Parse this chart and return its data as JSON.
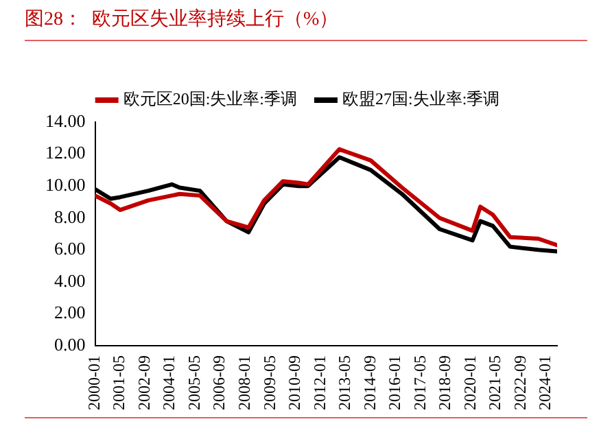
{
  "chart_data": {
    "type": "line",
    "title": "图28：  欧元区失业率持续上行（%）",
    "x": [
      "2000-01",
      "2000-11",
      "2001-05",
      "2002-11",
      "2004-02",
      "2004-07",
      "2005-08",
      "2007-01",
      "2008-03",
      "2009-01",
      "2010-01",
      "2010-11",
      "2011-05",
      "2013-01",
      "2014-09",
      "2016-05",
      "2018-05",
      "2020-02",
      "2020-07",
      "2021-03",
      "2022-02",
      "2023-08",
      "2024-08"
    ],
    "series": [
      {
        "name": "欧元区20国:失业率:季调",
        "color": "#c00000",
        "values": [
          9.4,
          8.9,
          8.5,
          9.1,
          9.4,
          9.5,
          9.4,
          7.8,
          7.4,
          9.1,
          10.3,
          10.2,
          10.1,
          12.3,
          11.6,
          9.9,
          8.0,
          7.2,
          8.7,
          8.2,
          6.8,
          6.7,
          6.3
        ]
      },
      {
        "name": "欧盟27国:失业率:季调",
        "color": "#000000",
        "values": [
          9.8,
          9.2,
          9.3,
          9.7,
          10.1,
          9.9,
          9.7,
          7.8,
          7.1,
          8.9,
          10.1,
          10.0,
          10.0,
          11.8,
          11.0,
          9.5,
          7.3,
          6.6,
          7.8,
          7.5,
          6.2,
          6.0,
          5.9
        ]
      }
    ],
    "xlim": [
      "2000-01",
      "2024-08"
    ],
    "xticks": [
      "2000-01",
      "2001-05",
      "2002-09",
      "2004-01",
      "2005-05",
      "2006-09",
      "2008-01",
      "2009-05",
      "2010-09",
      "2012-01",
      "2013-05",
      "2014-09",
      "2016-01",
      "2017-05",
      "2018-09",
      "2020-01",
      "2021-05",
      "2022-09",
      "2024-01"
    ],
    "ylim": [
      0,
      14
    ],
    "yticks": [
      {
        "value": 0,
        "label": "0.00"
      },
      {
        "value": 2,
        "label": "2.00"
      },
      {
        "value": 4,
        "label": "4.00"
      },
      {
        "value": 6,
        "label": "6.00"
      },
      {
        "value": 8,
        "label": "8.00"
      },
      {
        "value": 10,
        "label": "10.00"
      },
      {
        "value": 12,
        "label": "12.00"
      },
      {
        "value": 14,
        "label": "14.00"
      }
    ],
    "grid": false,
    "legend": "top",
    "marker": "none",
    "line_style": "solid"
  }
}
